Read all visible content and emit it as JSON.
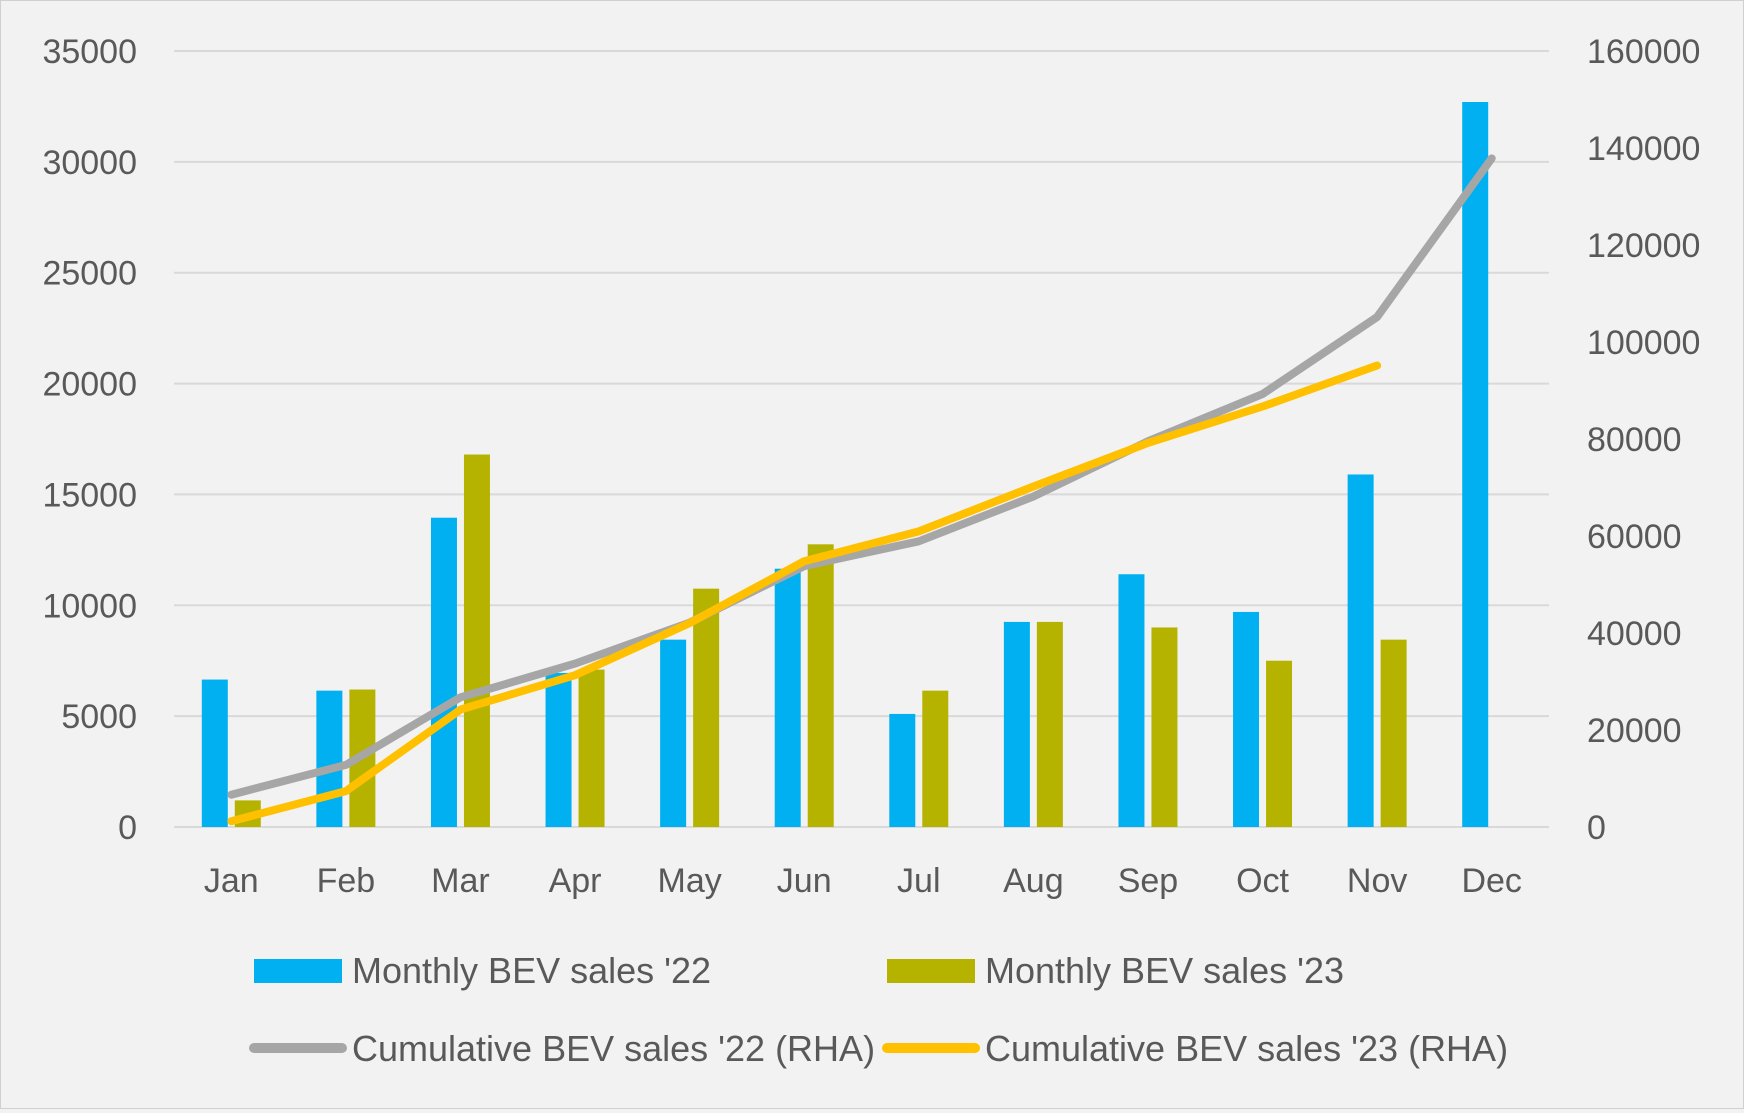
{
  "colors": {
    "background": "#f2f2f2",
    "grid": "#d9d9d9",
    "text": "#595959",
    "bev22_bar": "#00b0f0",
    "bev23_bar": "#b5b300",
    "cum22_line": "#a6a6a6",
    "cum23_line": "#ffc000"
  },
  "chart_data": {
    "type": "bar",
    "categories": [
      "Jan",
      "Feb",
      "Mar",
      "Apr",
      "May",
      "Jun",
      "Jul",
      "Aug",
      "Sep",
      "Oct",
      "Nov",
      "Dec"
    ],
    "ylim": [
      0,
      35000
    ],
    "yticks": [
      "35000",
      "30000",
      "25000",
      "20000",
      "15000",
      "10000",
      "5000",
      "0"
    ],
    "y2lim": [
      0,
      160000
    ],
    "y2ticks": [
      "160000",
      "140000",
      "120000",
      "100000",
      "80000",
      "60000",
      "40000",
      "20000",
      "0"
    ],
    "grid": true,
    "legend_position": "bottom",
    "series": [
      {
        "name": "Monthly BEV sales '22",
        "type": "bar",
        "axis": "left",
        "color": "#00b0f0",
        "values": [
          6650,
          6150,
          13950,
          6950,
          8450,
          11650,
          5100,
          9250,
          11400,
          9700,
          15900,
          32700
        ]
      },
      {
        "name": "Monthly BEV sales '23",
        "type": "bar",
        "axis": "left",
        "color": "#b5b300",
        "values": [
          1200,
          6200,
          16800,
          7100,
          10750,
          12750,
          6150,
          9250,
          9000,
          7500,
          8450,
          null
        ]
      },
      {
        "name": "Cumulative BEV sales '22 (RHA)",
        "type": "line",
        "axis": "right",
        "color": "#a6a6a6",
        "values": [
          6650,
          12800,
          26750,
          33700,
          42150,
          53800,
          58900,
          68150,
          79550,
          89250,
          105150,
          137850
        ]
      },
      {
        "name": "Cumulative BEV sales '23 (RHA)",
        "type": "line",
        "axis": "right",
        "color": "#ffc000",
        "values": [
          1200,
          7400,
          24200,
          31300,
          42050,
          54800,
          60950,
          70200,
          79200,
          86700,
          95150,
          null
        ]
      }
    ]
  }
}
